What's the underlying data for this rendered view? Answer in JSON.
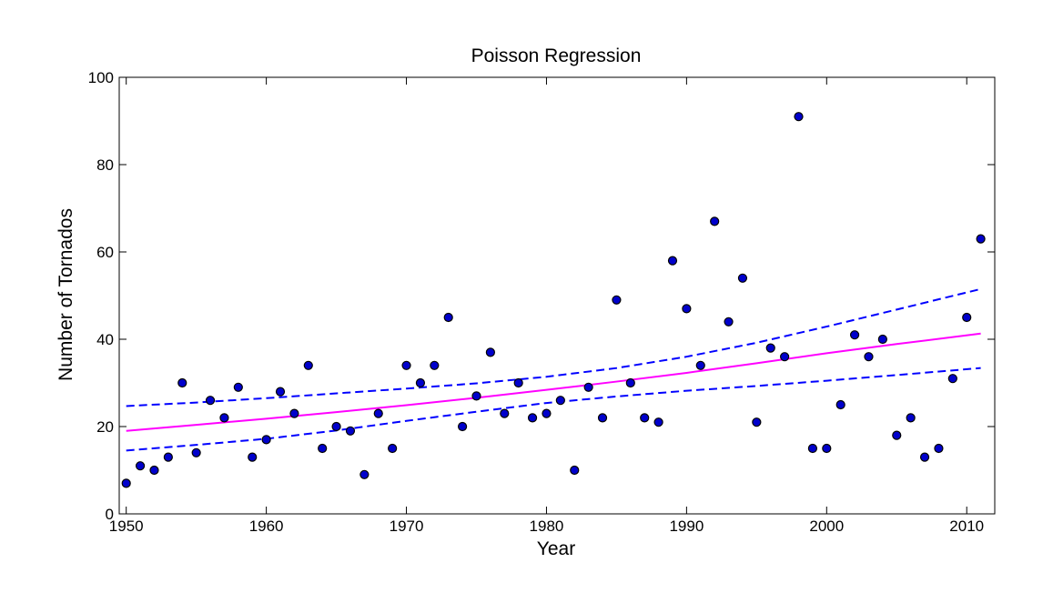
{
  "chart_data": {
    "type": "scatter",
    "title": "Poisson Regression",
    "xlabel": "Year",
    "ylabel": "Number of Tornados",
    "xlim": [
      1949.5,
      2012
    ],
    "ylim": [
      0,
      100
    ],
    "xticks": [
      1950,
      1960,
      1970,
      1980,
      1990,
      2000,
      2010
    ],
    "yticks": [
      0,
      20,
      40,
      60,
      80,
      100
    ],
    "grid": false,
    "legend": "none",
    "series": [
      {
        "kind": "scatter",
        "marker_color": "#0000cc",
        "x": [
          1950,
          1951,
          1952,
          1953,
          1954,
          1955,
          1956,
          1957,
          1958,
          1959,
          1960,
          1961,
          1962,
          1963,
          1964,
          1965,
          1966,
          1967,
          1968,
          1969,
          1970,
          1971,
          1972,
          1973,
          1974,
          1975,
          1976,
          1977,
          1978,
          1979,
          1980,
          1981,
          1982,
          1983,
          1984,
          1985,
          1986,
          1987,
          1988,
          1989,
          1990,
          1991,
          1992,
          1993,
          1994,
          1995,
          1996,
          1997,
          1998,
          1999,
          2000,
          2001,
          2002,
          2003,
          2004,
          2005,
          2006,
          2007,
          2008,
          2009,
          2010,
          2011
        ],
        "y": [
          7,
          11,
          10,
          13,
          30,
          14,
          26,
          22,
          29,
          13,
          17,
          28,
          23,
          34,
          15,
          20,
          19,
          9,
          23,
          15,
          34,
          30,
          34,
          45,
          20,
          27,
          37,
          23,
          30,
          22,
          23,
          26,
          10,
          29,
          22,
          49,
          30,
          22,
          21,
          58,
          47,
          34,
          67,
          44,
          54,
          21,
          38,
          36,
          91,
          15,
          15,
          25,
          41,
          36,
          40,
          18,
          22,
          13,
          15,
          31,
          45,
          63
        ]
      },
      {
        "kind": "line",
        "style": "solid",
        "color": "#ff00ff",
        "x": [
          1950,
          1955,
          1960,
          1965,
          1970,
          1975,
          1980,
          1985,
          1990,
          1995,
          2000,
          2005,
          2011
        ],
        "y": [
          19.0,
          20.4,
          21.8,
          23.3,
          24.9,
          26.6,
          28.4,
          30.3,
          32.3,
          34.5,
          36.8,
          38.9,
          41.3
        ]
      },
      {
        "kind": "line",
        "style": "dashed",
        "color": "#0000ff",
        "x": [
          1950,
          1955,
          1960,
          1965,
          1970,
          1975,
          1980,
          1985,
          1990,
          1995,
          2000,
          2005,
          2011
        ],
        "y": [
          24.7,
          25.5,
          26.5,
          27.6,
          28.7,
          29.9,
          31.4,
          33.4,
          36.0,
          39.2,
          42.9,
          46.8,
          51.5
        ]
      },
      {
        "kind": "line",
        "style": "dashed",
        "color": "#0000ff",
        "x": [
          1950,
          1955,
          1960,
          1965,
          1970,
          1975,
          1980,
          1985,
          1990,
          1995,
          2000,
          2005,
          2011
        ],
        "y": [
          14.5,
          15.8,
          17.2,
          19.1,
          21.3,
          23.4,
          25.4,
          26.9,
          28.2,
          29.3,
          30.5,
          31.8,
          33.4
        ]
      }
    ]
  }
}
